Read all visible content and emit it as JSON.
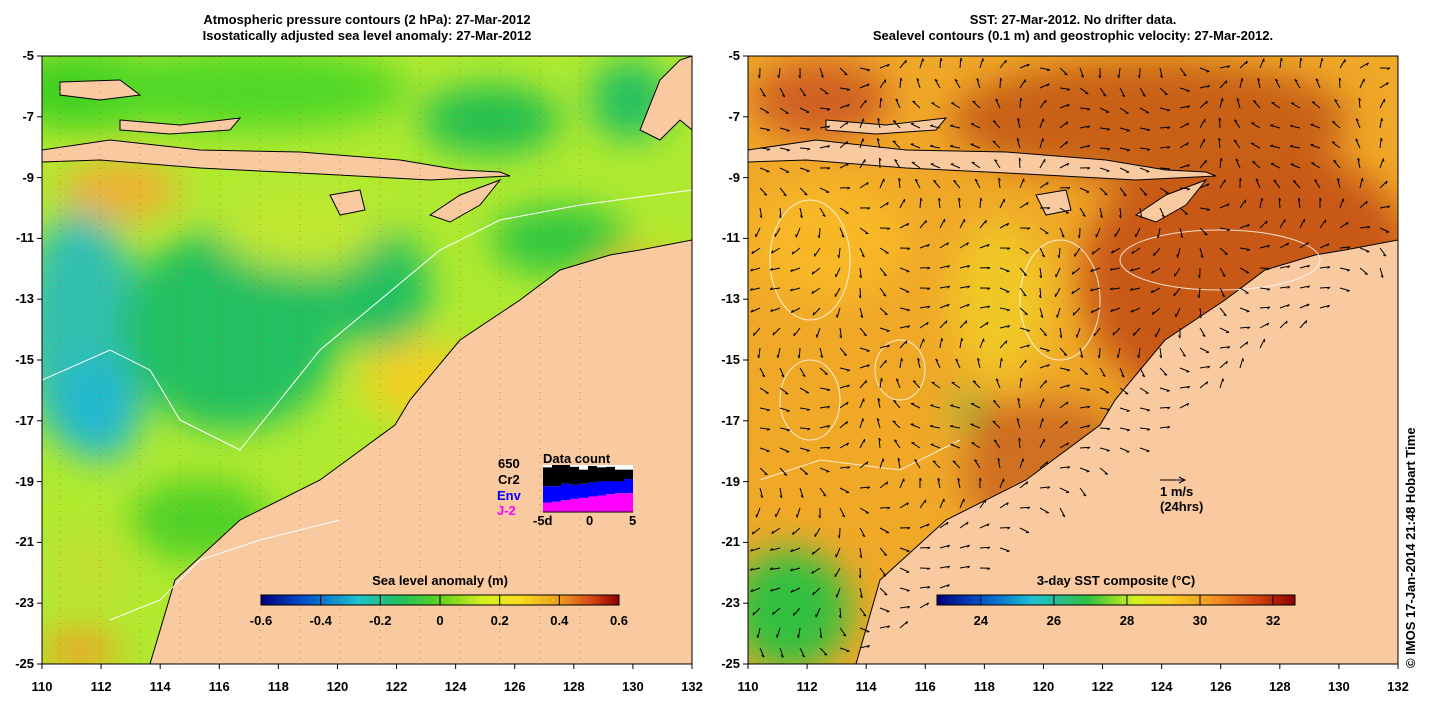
{
  "left_panel": {
    "title_line1": "Atmospheric pressure contours (2 hPa): 27-Mar-2012",
    "title_line2": "Isostatically adjusted sea level anomaly: 27-Mar-2012",
    "colorbar": {
      "label": "Sea level anomaly (m)",
      "ticks": [
        "-0.6",
        "-0.4",
        "-0.2",
        "0",
        "0.2",
        "0.4",
        "0.6"
      ],
      "range": [
        -0.6,
        0.6
      ]
    },
    "data_count": {
      "title": "Data count",
      "max_label": "650",
      "legend": [
        {
          "name": "Cr2",
          "color": "#000000"
        },
        {
          "name": "Env",
          "color": "#0000ff"
        },
        {
          "name": "J-2",
          "color": "#ff00ff"
        }
      ],
      "x_ticks": [
        "-5d",
        "0",
        "5"
      ],
      "bars": [
        {
          "day": -5,
          "j2": 0.2,
          "env": 0.35,
          "cr2": 0.4
        },
        {
          "day": -4,
          "j2": 0.22,
          "env": 0.33,
          "cr2": 0.45
        },
        {
          "day": -3,
          "j2": 0.25,
          "env": 0.35,
          "cr2": 0.4
        },
        {
          "day": -2,
          "j2": 0.28,
          "env": 0.3,
          "cr2": 0.38
        },
        {
          "day": -1,
          "j2": 0.3,
          "env": 0.3,
          "cr2": 0.3
        },
        {
          "day": 0,
          "j2": 0.33,
          "env": 0.3,
          "cr2": 0.35
        },
        {
          "day": 1,
          "j2": 0.35,
          "env": 0.3,
          "cr2": 0.3
        },
        {
          "day": 2,
          "j2": 0.38,
          "env": 0.28,
          "cr2": 0.3
        },
        {
          "day": 3,
          "j2": 0.4,
          "env": 0.25,
          "cr2": 0.25
        },
        {
          "day": 4,
          "j2": 0.4,
          "env": 0.3,
          "cr2": 0.2
        }
      ]
    }
  },
  "right_panel": {
    "title_line1": "SST: 27-Mar-2012. No drifter data.",
    "title_line2": "Sealevel contours (0.1 m) and geostrophic velocity: 27-Mar-2012.",
    "colorbar": {
      "label": "3-day SST composite (°C)",
      "ticks": [
        "24",
        "26",
        "28",
        "30",
        "32"
      ],
      "range": [
        22.8,
        32.6
      ]
    },
    "velocity_key": {
      "line1": "1 m/s",
      "line2": "(24hrs)"
    }
  },
  "axes": {
    "lat_ticks": [
      "-5",
      "-7",
      "-9",
      "-11",
      "-13",
      "-15",
      "-17",
      "-19",
      "-21",
      "-23",
      "-25"
    ],
    "lon_ticks": [
      "110",
      "112",
      "114",
      "116",
      "118",
      "120",
      "122",
      "124",
      "126",
      "128",
      "130",
      "132"
    ],
    "lon_range": [
      110,
      132
    ],
    "lat_range": [
      -5,
      -25
    ]
  },
  "copyright": "© IMOS 17-Jan-2014 21:48 Hobart Time",
  "colors": {
    "land": "#f9c9a0",
    "sla_scale": [
      "#00007f",
      "#0060d0",
      "#20c0d0",
      "#20c060",
      "#40d020",
      "#a0e020",
      "#f0f020",
      "#f0a020",
      "#d04010",
      "#900000"
    ],
    "sst_scale": [
      "#00007f",
      "#0060d0",
      "#20c0d0",
      "#20c060",
      "#80d020",
      "#f0e020",
      "#f0b020",
      "#e07010",
      "#c03010",
      "#900000"
    ]
  }
}
